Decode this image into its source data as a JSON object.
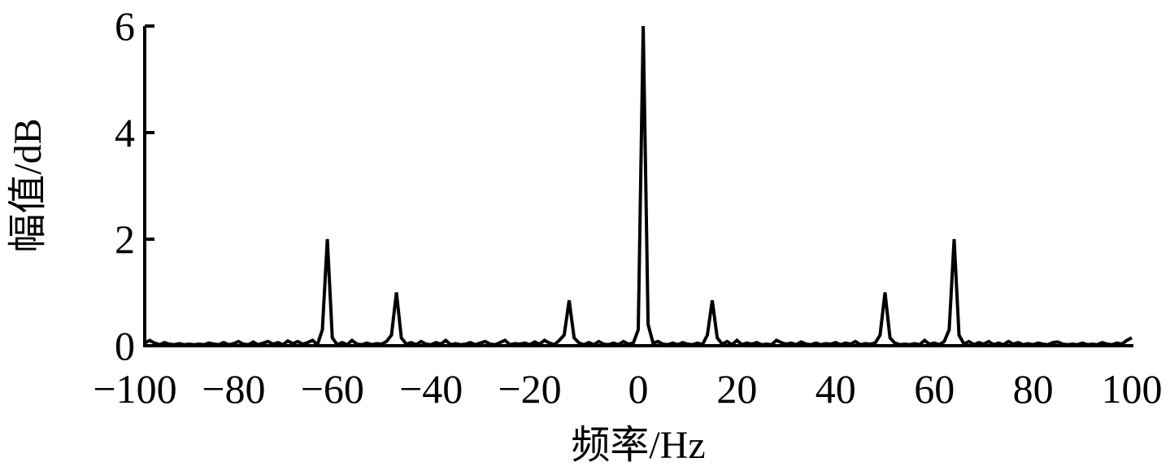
{
  "chart_data": {
    "type": "line",
    "xlabel": "频率/Hz",
    "ylabel": "幅值/dB",
    "xlim": [
      -100,
      100
    ],
    "ylim": [
      0,
      6
    ],
    "xticks": [
      -100,
      -80,
      -60,
      -40,
      -20,
      0,
      20,
      40,
      60,
      80,
      100
    ],
    "yticks": [
      0,
      2,
      4,
      6
    ],
    "grid": false,
    "line_color": "#000000",
    "x_start": -100,
    "x_step": 1,
    "y": [
      0.05,
      0.1,
      0.05,
      0.02,
      0.06,
      0.03,
      0.02,
      0.04,
      0.02,
      0.03,
      0.02,
      0.03,
      0.02,
      0.05,
      0.03,
      0.02,
      0.06,
      0.02,
      0.04,
      0.08,
      0.03,
      0.02,
      0.07,
      0.02,
      0.05,
      0.08,
      0.03,
      0.06,
      0.02,
      0.09,
      0.04,
      0.08,
      0.03,
      0.06,
      0.1,
      0.02,
      0.3,
      2.0,
      0.15,
      0.02,
      0.06,
      0.02,
      0.1,
      0.03,
      0.02,
      0.05,
      0.02,
      0.04,
      0.03,
      0.08,
      0.2,
      1.0,
      0.15,
      0.03,
      0.06,
      0.02,
      0.08,
      0.03,
      0.02,
      0.06,
      0.03,
      0.1,
      0.02,
      0.04,
      0.02,
      0.03,
      0.06,
      0.02,
      0.05,
      0.08,
      0.03,
      0.02,
      0.06,
      0.1,
      0.02,
      0.04,
      0.03,
      0.05,
      0.02,
      0.07,
      0.03,
      0.1,
      0.05,
      0.02,
      0.1,
      0.2,
      0.85,
      0.15,
      0.05,
      0.02,
      0.06,
      0.02,
      0.08,
      0.03,
      0.02,
      0.05,
      0.02,
      0.08,
      0.03,
      0.05,
      0.3,
      6.0,
      0.4,
      0.05,
      0.08,
      0.03,
      0.02,
      0.05,
      0.02,
      0.06,
      0.03,
      0.02,
      0.05,
      0.02,
      0.2,
      0.85,
      0.15,
      0.03,
      0.08,
      0.02,
      0.1,
      0.02,
      0.05,
      0.03,
      0.06,
      0.02,
      0.03,
      0.02,
      0.1,
      0.06,
      0.03,
      0.05,
      0.02,
      0.07,
      0.03,
      0.02,
      0.05,
      0.02,
      0.04,
      0.03,
      0.06,
      0.02,
      0.05,
      0.03,
      0.08,
      0.02,
      0.04,
      0.03,
      0.05,
      0.2,
      1.0,
      0.15,
      0.05,
      0.02,
      0.03,
      0.02,
      0.04,
      0.02,
      0.1,
      0.03,
      0.05,
      0.02,
      0.08,
      0.3,
      2.0,
      0.2,
      0.03,
      0.08,
      0.02,
      0.06,
      0.03,
      0.08,
      0.02,
      0.05,
      0.02,
      0.08,
      0.03,
      0.06,
      0.02,
      0.04,
      0.02,
      0.05,
      0.03,
      0.02,
      0.06,
      0.07,
      0.03,
      0.02,
      0.03,
      0.02,
      0.05,
      0.02,
      0.03,
      0.02,
      0.06,
      0.03,
      0.02,
      0.05,
      0.03,
      0.1,
      0.15
    ]
  }
}
